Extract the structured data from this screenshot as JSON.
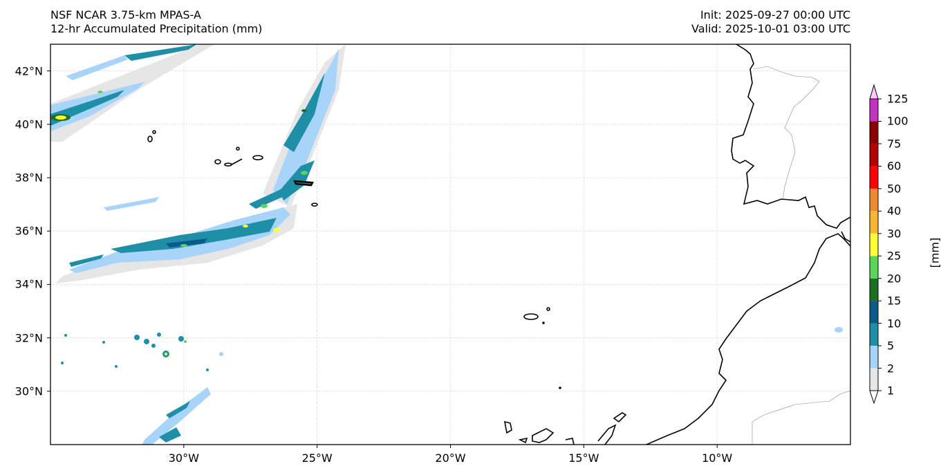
{
  "header": {
    "model": "NSF NCAR 3.75-km MPAS-A",
    "field": "12-hr Accumulated Precipitation (mm)",
    "init": "Init: 2025-09-27 00:00 UTC",
    "valid": "Valid: 2025-10-01 03:00 UTC"
  },
  "map": {
    "lon_range": [
      -35,
      -5
    ],
    "lat_range": [
      28,
      43
    ],
    "lat_ticks": [
      "42°N",
      "40°N",
      "38°N",
      "36°N",
      "34°N",
      "32°N",
      "30°N"
    ],
    "lat_values": [
      42,
      40,
      38,
      36,
      34,
      32,
      30
    ],
    "lon_ticks": [
      "30°W",
      "25°W",
      "20°W",
      "15°W",
      "10°W"
    ],
    "lon_values": [
      -30,
      -25,
      -20,
      -15,
      -10
    ],
    "grid": true
  },
  "colorbar": {
    "label": "[mm]",
    "levels": [
      "1",
      "2",
      "5",
      "10",
      "15",
      "20",
      "25",
      "30",
      "40",
      "50",
      "60",
      "75",
      "100",
      "125"
    ],
    "colors": [
      "#e6e6e6",
      "#a8d4fa",
      "#1f8fa8",
      "#0a5a8a",
      "#1d6f21",
      "#5bd55b",
      "#ffff33",
      "#f7b733",
      "#ef8a2e",
      "#ff0000",
      "#b40000",
      "#8b0000",
      "#c334c3",
      "#ffc6ff"
    ]
  }
}
